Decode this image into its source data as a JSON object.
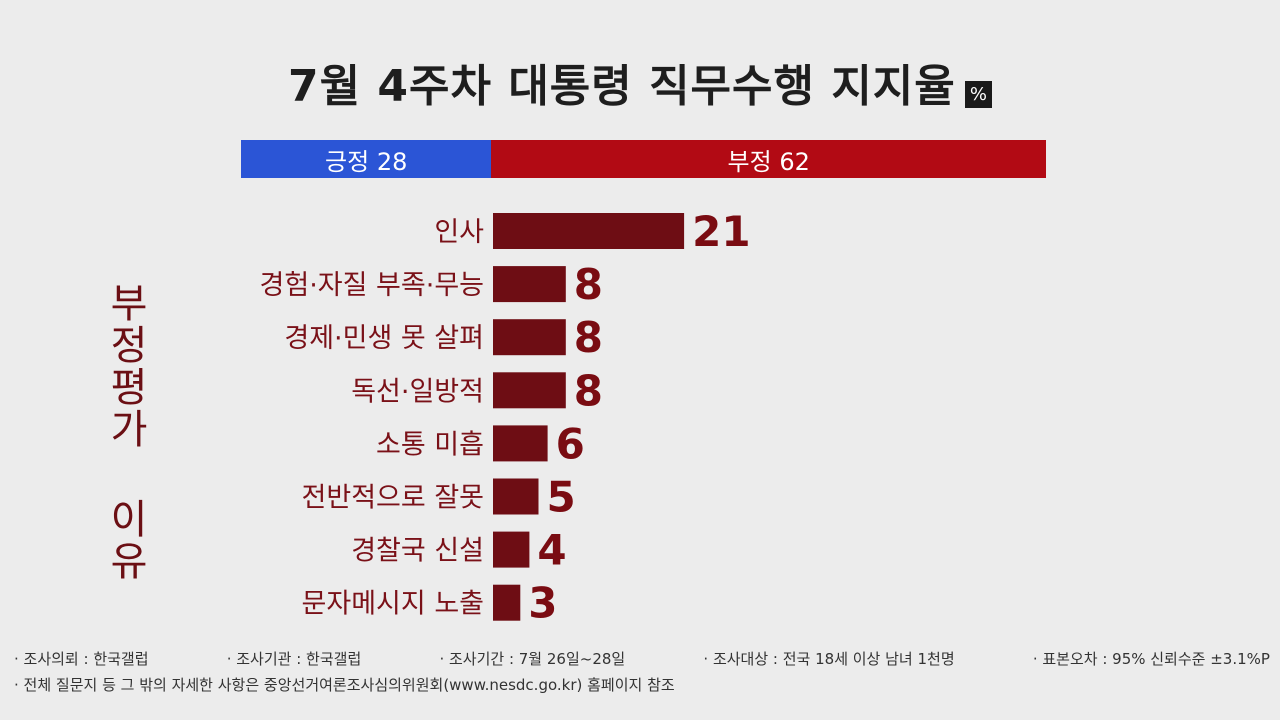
{
  "title": "7월 4주차 대통령 직무수행 지지율",
  "unit_badge": "%",
  "split_bar": {
    "positive": {
      "label": "긍정 28",
      "value": 28,
      "color": "#2b55d6"
    },
    "negative": {
      "label": "부정 62",
      "value": 62,
      "color": "#b20a14"
    }
  },
  "side_label": "부정평가 이유",
  "chart_data": {
    "type": "bar",
    "orientation": "horizontal",
    "categories": [
      "인사",
      "경험·자질 부족·무능",
      "경제·민생 못 살펴",
      "독선·일방적",
      "소통 미흡",
      "전반적으로 잘못",
      "경찰국 신설",
      "문자메시지 노출"
    ],
    "values": [
      21,
      8,
      8,
      8,
      6,
      5,
      4,
      3
    ],
    "bar_color": "#6e0d14",
    "label_color": "#7a1118",
    "value_color": "#7a0c12"
  },
  "footer": {
    "items": [
      "· 조사의뢰 : 한국갤럽",
      "· 조사기관 : 한국갤럽",
      "· 조사기간 : 7월 26일~28일",
      "· 조사대상 : 전국 18세 이상 남녀 1천명",
      "· 표본오차 : 95% 신뢰수준 ±3.1%P"
    ],
    "note": "· 전체 질문지 등 그 밖의 자세한 사항은 중앙선거여론조사심의위원회(www.nesdc.go.kr) 홈페이지 참조"
  }
}
